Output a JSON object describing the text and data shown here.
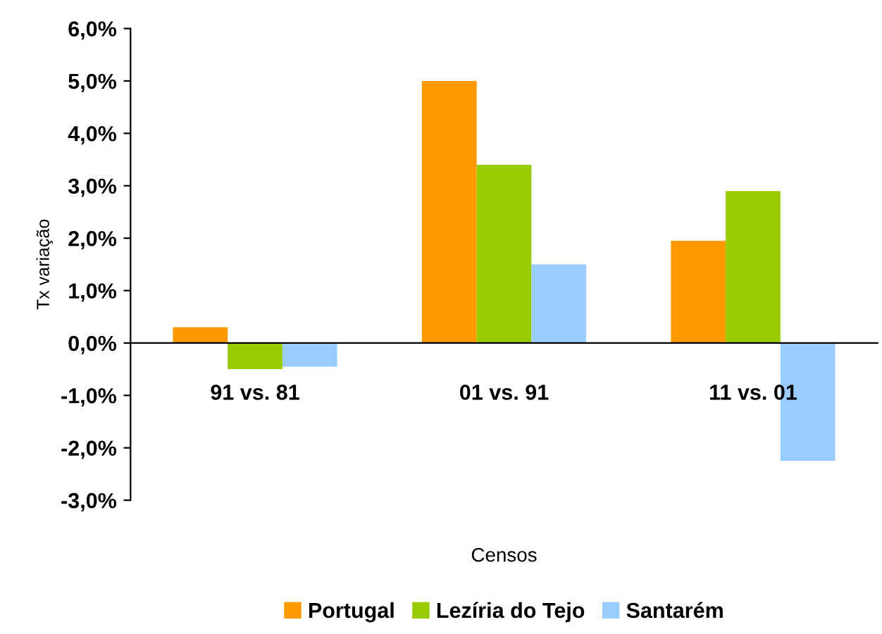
{
  "chart_data": {
    "type": "bar",
    "categories": [
      "91 vs. 81",
      "01 vs. 91",
      "11 vs. 01"
    ],
    "series": [
      {
        "name": "Portugal",
        "color": "#ff9900",
        "values": [
          0.3,
          5.0,
          1.95
        ]
      },
      {
        "name": "Lezíria do Tejo",
        "color": "#99cc00",
        "values": [
          -0.5,
          3.4,
          2.9
        ]
      },
      {
        "name": "Santarém",
        "color": "#99ccff",
        "values": [
          -0.45,
          1.5,
          -2.25
        ]
      }
    ],
    "xlabel": "Censos",
    "ylabel": "Tx variação",
    "ylim": [
      -3,
      6
    ],
    "yticks": [
      {
        "value": -3,
        "label": "-3,0%"
      },
      {
        "value": -2,
        "label": "-2,0%"
      },
      {
        "value": -1,
        "label": "-1,0%"
      },
      {
        "value": 0,
        "label": "0,0%"
      },
      {
        "value": 1,
        "label": "1,0%"
      },
      {
        "value": 2,
        "label": "2,0%"
      },
      {
        "value": 3,
        "label": "3,0%"
      },
      {
        "value": 4,
        "label": "4,0%"
      },
      {
        "value": 5,
        "label": "5,0%"
      },
      {
        "value": 6,
        "label": "6,0%"
      }
    ],
    "grid": false,
    "legend": "bottom"
  }
}
